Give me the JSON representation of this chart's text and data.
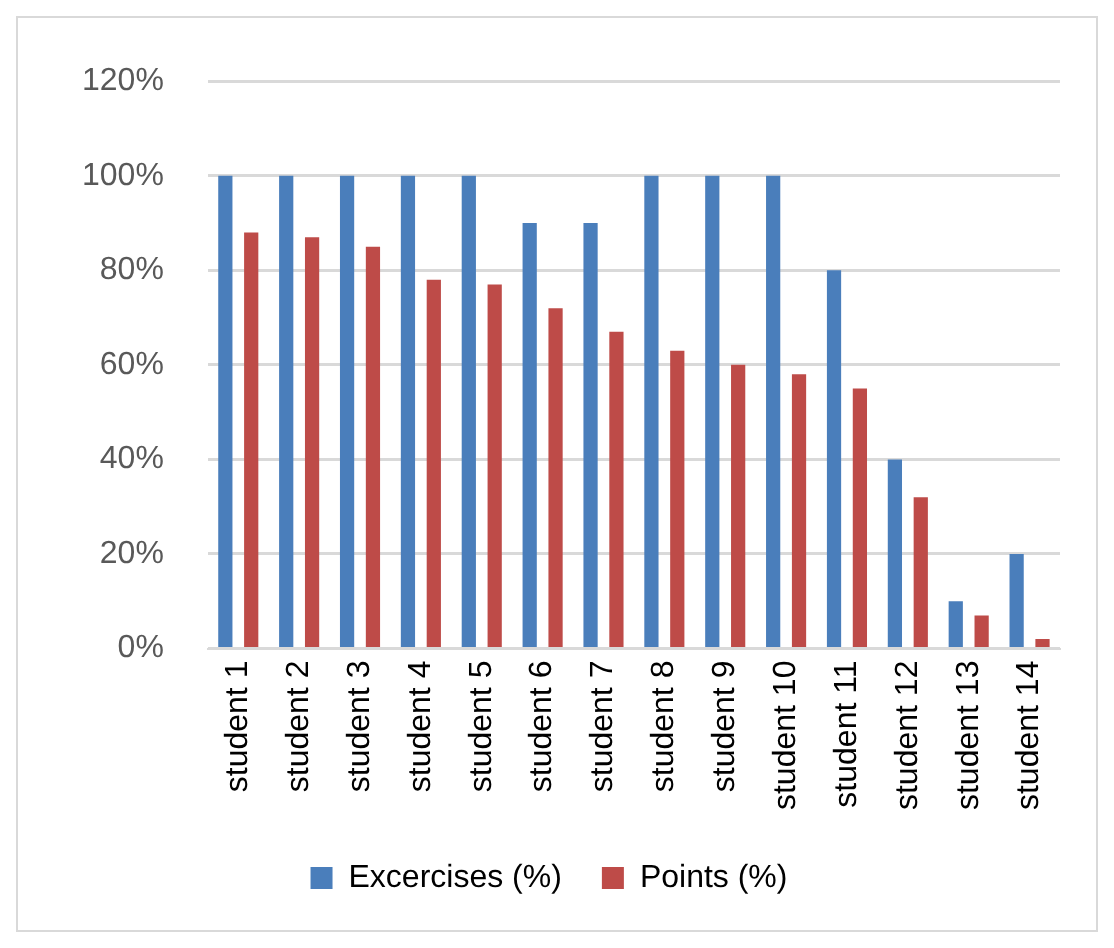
{
  "chart_data": {
    "type": "bar",
    "categories": [
      "student 1",
      "student 2",
      "student 3",
      "student 4",
      "student 5",
      "student 6",
      "student 7",
      "student 8",
      "student 9",
      "student 10",
      "student 11",
      "student 12",
      "student 13",
      "student 14"
    ],
    "series": [
      {
        "name": "Excercises (%)",
        "color": "#4a7ebb",
        "values": [
          100,
          100,
          100,
          100,
          100,
          90,
          90,
          100,
          100,
          100,
          80,
          40,
          10,
          20
        ]
      },
      {
        "name": "Points (%)",
        "color": "#be4b48",
        "values": [
          88,
          87,
          85,
          78,
          77,
          72,
          67,
          63,
          60,
          58,
          55,
          32,
          7,
          2
        ]
      }
    ],
    "ylim": [
      0,
      120
    ],
    "yticks": [
      {
        "value": 0,
        "label": "0%"
      },
      {
        "value": 20,
        "label": "20%"
      },
      {
        "value": 40,
        "label": "40%"
      },
      {
        "value": 60,
        "label": "60%"
      },
      {
        "value": 80,
        "label": "80%"
      },
      {
        "value": 100,
        "label": "100%"
      },
      {
        "value": 120,
        "label": "120%"
      }
    ],
    "grid": "y",
    "legend": "bottom"
  }
}
